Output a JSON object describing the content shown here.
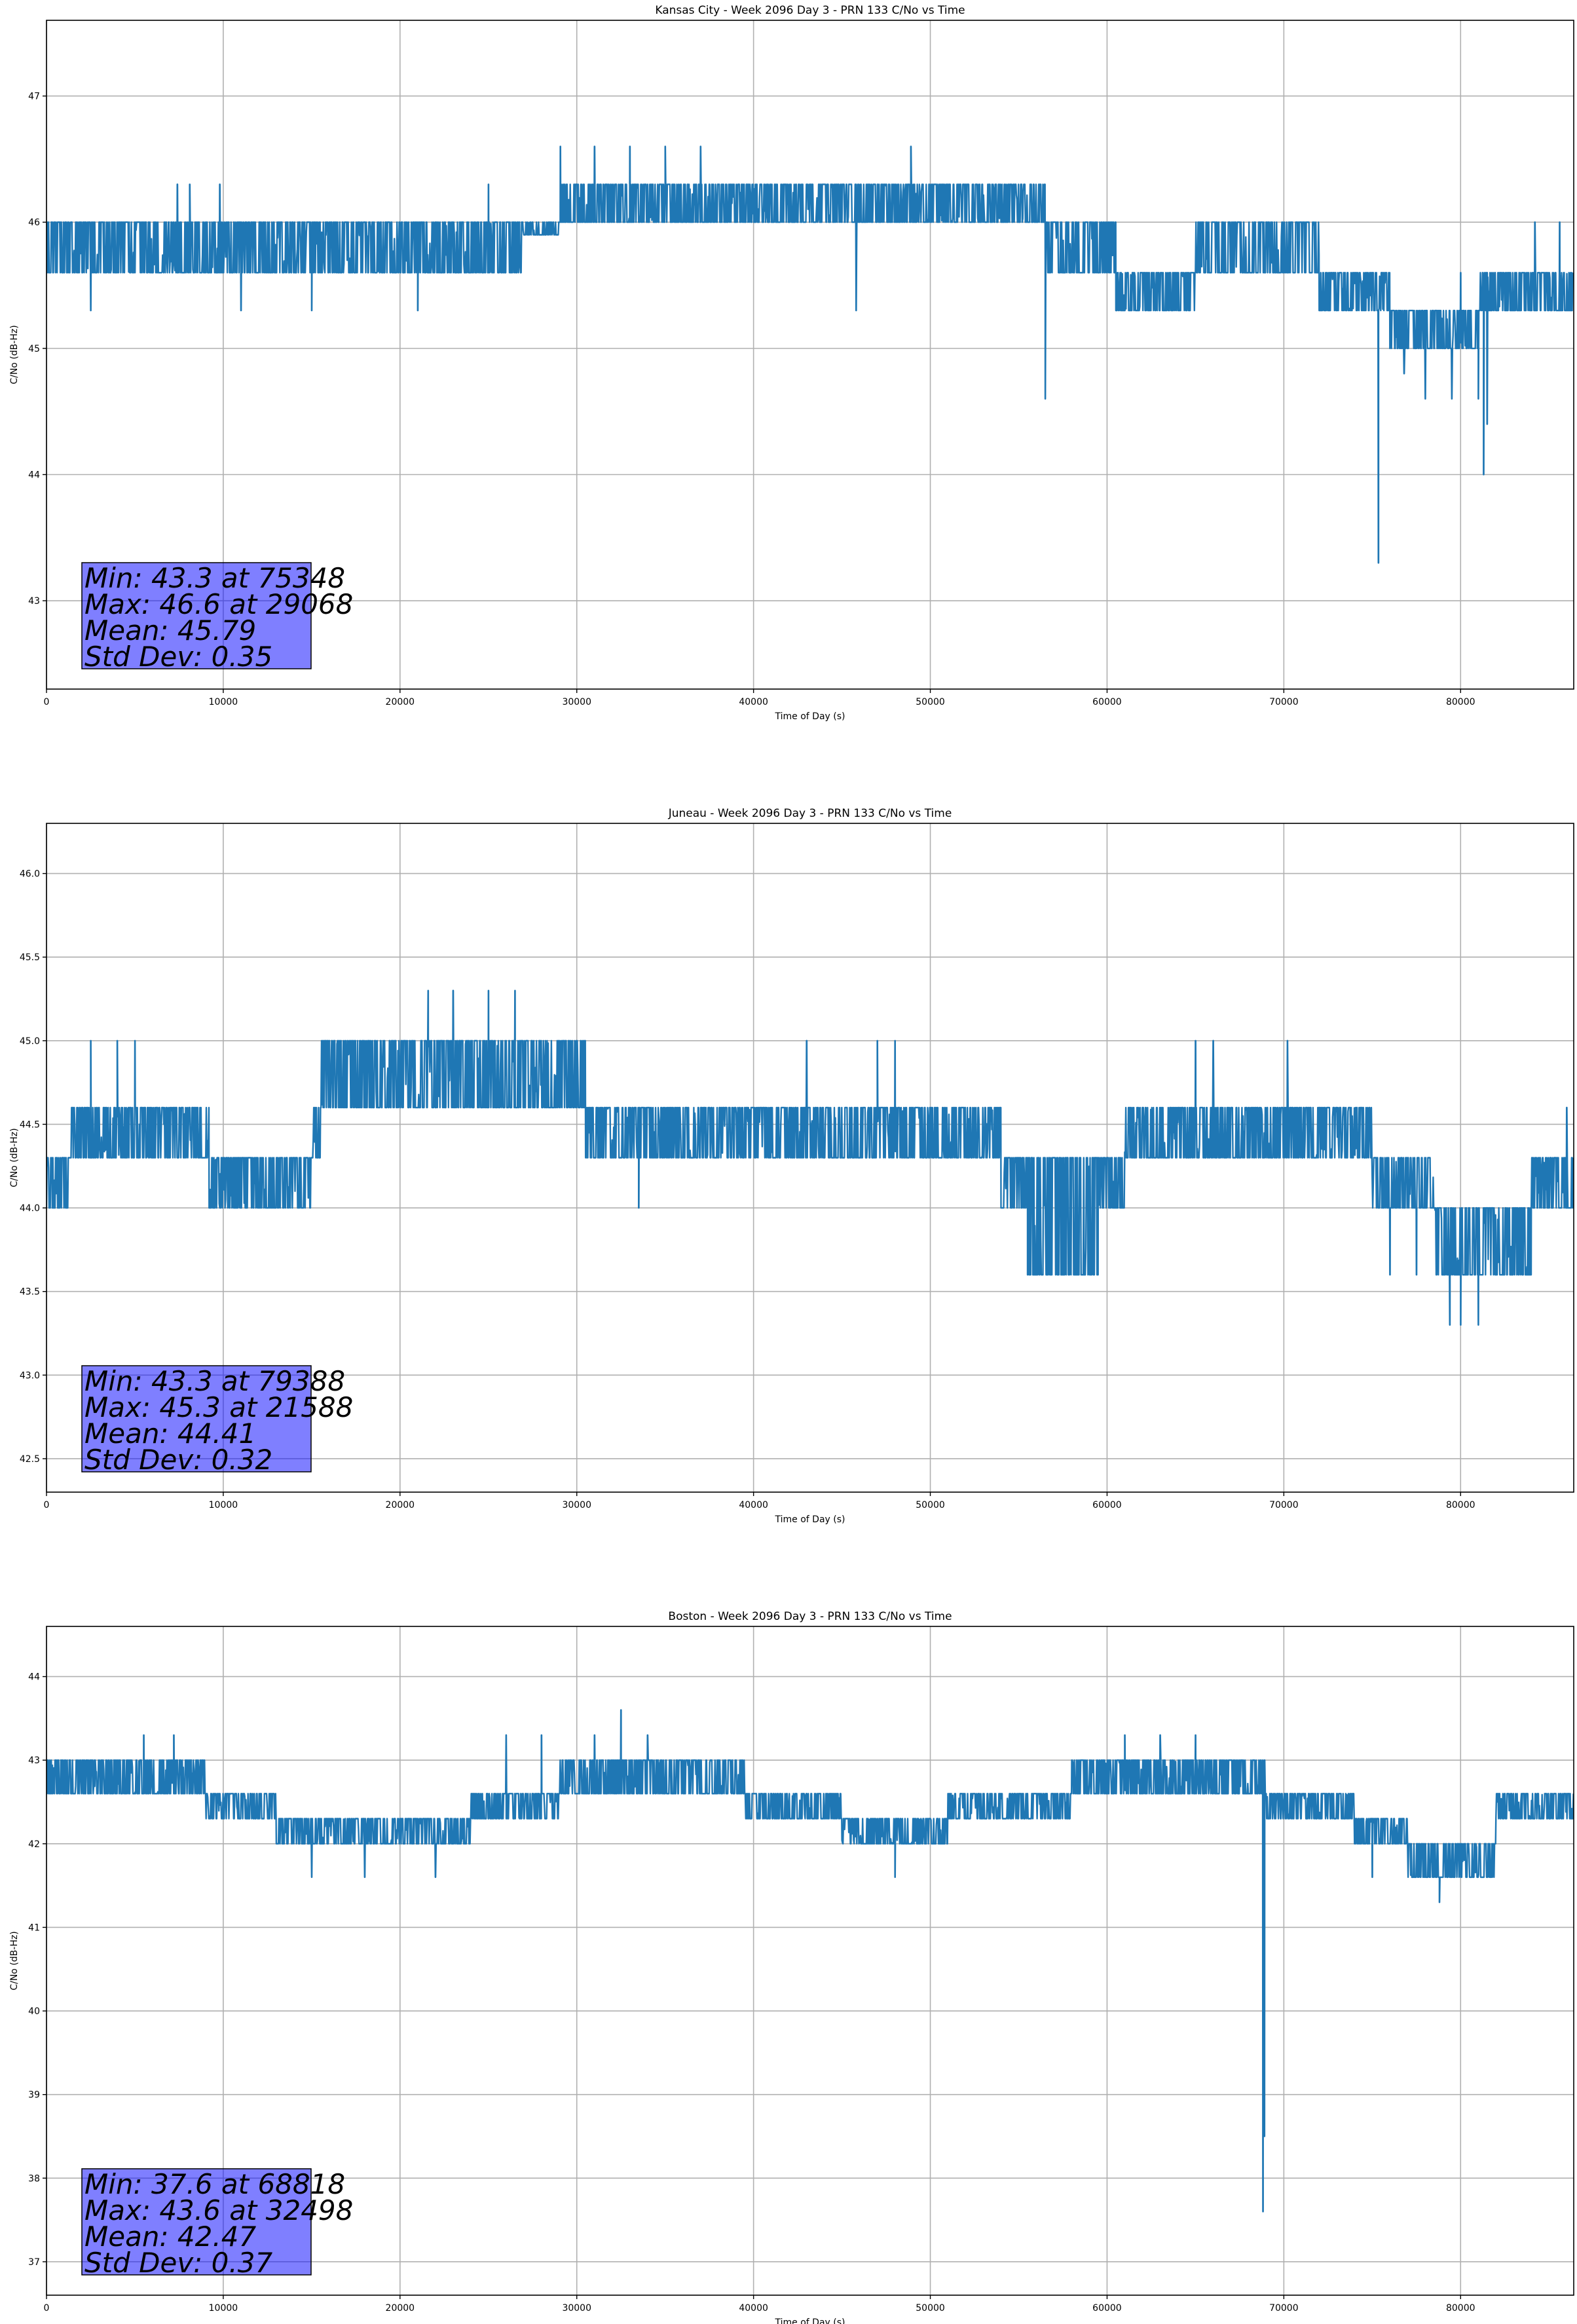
{
  "colors": {
    "series": "#1f77b4",
    "stats_box": "#0000ff",
    "grid": "#b0b0b0"
  },
  "chart_data": [
    {
      "type": "line",
      "title": "Kansas City - Week 2096 Day 3 - PRN 133 C/No vs Time",
      "xlabel": "Time of Day (s)",
      "ylabel": "C/No (dB-Hz)",
      "xlim": [
        0,
        86400
      ],
      "ylim": [
        42.3,
        47.6
      ],
      "xticks": [
        0,
        10000,
        20000,
        30000,
        40000,
        50000,
        60000,
        70000,
        80000
      ],
      "yticks": [
        43,
        44,
        45,
        46,
        47
      ],
      "grid": true,
      "series": [
        {
          "name": "C/No",
          "bands": [
            {
              "x0": 0,
              "x1": 27000,
              "lo": 45.6,
              "hi": 46.0
            },
            {
              "x0": 27000,
              "x1": 29000,
              "lo": 45.9,
              "hi": 46.0
            },
            {
              "x0": 29000,
              "x1": 40500,
              "lo": 46.0,
              "hi": 46.3
            },
            {
              "x0": 40500,
              "x1": 56500,
              "lo": 46.0,
              "hi": 46.3
            },
            {
              "x0": 56500,
              "x1": 60500,
              "lo": 45.6,
              "hi": 46.0
            },
            {
              "x0": 60500,
              "x1": 65000,
              "lo": 45.3,
              "hi": 45.6
            },
            {
              "x0": 65000,
              "x1": 72000,
              "lo": 45.6,
              "hi": 46.0
            },
            {
              "x0": 72000,
              "x1": 76000,
              "lo": 45.3,
              "hi": 45.6
            },
            {
              "x0": 76000,
              "x1": 81000,
              "lo": 45.0,
              "hi": 45.3
            },
            {
              "x0": 81000,
              "x1": 86400,
              "lo": 45.3,
              "hi": 45.6
            }
          ],
          "spikes": [
            {
              "x": 7400,
              "y": 46.3
            },
            {
              "x": 8100,
              "y": 46.3
            },
            {
              "x": 9800,
              "y": 46.3
            },
            {
              "x": 2500,
              "y": 45.3
            },
            {
              "x": 11000,
              "y": 45.3
            },
            {
              "x": 15000,
              "y": 45.3
            },
            {
              "x": 21000,
              "y": 45.3
            },
            {
              "x": 25000,
              "y": 46.3
            },
            {
              "x": 29068,
              "y": 46.6
            },
            {
              "x": 31000,
              "y": 46.6
            },
            {
              "x": 33000,
              "y": 46.6
            },
            {
              "x": 35000,
              "y": 46.6
            },
            {
              "x": 37000,
              "y": 46.6
            },
            {
              "x": 48900,
              "y": 46.6
            },
            {
              "x": 45800,
              "y": 45.3
            },
            {
              "x": 56500,
              "y": 44.6
            },
            {
              "x": 75348,
              "y": 43.3
            },
            {
              "x": 76800,
              "y": 44.8
            },
            {
              "x": 78000,
              "y": 44.6
            },
            {
              "x": 79500,
              "y": 44.6
            },
            {
              "x": 81300,
              "y": 44.0
            },
            {
              "x": 81500,
              "y": 44.4
            },
            {
              "x": 81000,
              "y": 44.6
            },
            {
              "x": 80000,
              "y": 45.6
            },
            {
              "x": 84200,
              "y": 46.0
            },
            {
              "x": 85600,
              "y": 46.0
            }
          ]
        }
      ],
      "stats": {
        "min": "Min: 43.3 at 75348",
        "max": "Max: 46.6 at 29068",
        "mean": "Mean: 45.79",
        "std": "Std Dev: 0.35"
      }
    },
    {
      "type": "line",
      "title": "Juneau - Week 2096 Day 3 - PRN 133 C/No vs Time",
      "xlabel": "Time of Day (s)",
      "ylabel": "C/No (dB-Hz)",
      "xlim": [
        0,
        86400
      ],
      "ylim": [
        42.3,
        46.3
      ],
      "xticks": [
        0,
        10000,
        20000,
        30000,
        40000,
        50000,
        60000,
        70000,
        80000
      ],
      "yticks": [
        42.5,
        43.0,
        43.5,
        44.0,
        44.5,
        45.0,
        45.5,
        46.0
      ],
      "ytick_labels": [
        "42.5",
        "43.0",
        "43.5",
        "44.0",
        "44.5",
        "45.0",
        "45.5",
        "46.0"
      ],
      "grid": true,
      "series": [
        {
          "name": "C/No",
          "bands": [
            {
              "x0": 0,
              "x1": 1300,
              "lo": 44.0,
              "hi": 44.3
            },
            {
              "x0": 1300,
              "x1": 9200,
              "lo": 44.3,
              "hi": 44.6
            },
            {
              "x0": 9200,
              "x1": 15000,
              "lo": 44.0,
              "hi": 44.3
            },
            {
              "x0": 15000,
              "x1": 15500,
              "lo": 44.3,
              "hi": 44.6
            },
            {
              "x0": 15500,
              "x1": 21000,
              "lo": 44.6,
              "hi": 45.0
            },
            {
              "x0": 21000,
              "x1": 27000,
              "lo": 44.6,
              "hi": 45.0
            },
            {
              "x0": 27000,
              "x1": 30500,
              "lo": 44.6,
              "hi": 45.0
            },
            {
              "x0": 30500,
              "x1": 54000,
              "lo": 44.3,
              "hi": 44.6
            },
            {
              "x0": 54000,
              "x1": 55500,
              "lo": 44.0,
              "hi": 44.3
            },
            {
              "x0": 55500,
              "x1": 59500,
              "lo": 43.6,
              "hi": 44.3
            },
            {
              "x0": 59500,
              "x1": 61000,
              "lo": 44.0,
              "hi": 44.3
            },
            {
              "x0": 61000,
              "x1": 75000,
              "lo": 44.3,
              "hi": 44.6
            },
            {
              "x0": 75000,
              "x1": 78500,
              "lo": 44.0,
              "hi": 44.3
            },
            {
              "x0": 78500,
              "x1": 84000,
              "lo": 43.6,
              "hi": 44.0
            },
            {
              "x0": 84000,
              "x1": 86400,
              "lo": 44.0,
              "hi": 44.3
            }
          ],
          "spikes": [
            {
              "x": 2500,
              "y": 45.0
            },
            {
              "x": 4000,
              "y": 45.0
            },
            {
              "x": 5000,
              "y": 45.0
            },
            {
              "x": 21588,
              "y": 45.3
            },
            {
              "x": 23000,
              "y": 45.3
            },
            {
              "x": 25000,
              "y": 45.3
            },
            {
              "x": 26500,
              "y": 45.3
            },
            {
              "x": 33500,
              "y": 44.0
            },
            {
              "x": 43000,
              "y": 45.0
            },
            {
              "x": 47000,
              "y": 45.0
            },
            {
              "x": 48000,
              "y": 45.0
            },
            {
              "x": 55500,
              "y": 43.6
            },
            {
              "x": 57500,
              "y": 43.6
            },
            {
              "x": 65000,
              "y": 45.0
            },
            {
              "x": 66000,
              "y": 45.0
            },
            {
              "x": 70200,
              "y": 45.0
            },
            {
              "x": 76000,
              "y": 43.6
            },
            {
              "x": 77500,
              "y": 43.6
            },
            {
              "x": 79388,
              "y": 43.3
            },
            {
              "x": 80000,
              "y": 43.3
            },
            {
              "x": 81000,
              "y": 43.3
            },
            {
              "x": 86000,
              "y": 44.6
            }
          ]
        }
      ],
      "stats": {
        "min": "Min: 43.3 at 79388",
        "max": "Max: 45.3 at 21588",
        "mean": "Mean: 44.41",
        "std": "Std Dev: 0.32"
      }
    },
    {
      "type": "line",
      "title": "Boston - Week 2096 Day 3 - PRN 133 C/No vs Time",
      "xlabel": "Time of Day (s)",
      "ylabel": "C/No (dB-Hz)",
      "xlim": [
        0,
        86400
      ],
      "ylim": [
        36.6,
        44.6
      ],
      "xticks": [
        0,
        10000,
        20000,
        30000,
        40000,
        50000,
        60000,
        70000,
        80000
      ],
      "yticks": [
        37,
        38,
        39,
        40,
        41,
        42,
        43,
        44
      ],
      "grid": true,
      "series": [
        {
          "name": "C/No",
          "bands": [
            {
              "x0": 0,
              "x1": 9000,
              "lo": 42.6,
              "hi": 43.0
            },
            {
              "x0": 9000,
              "x1": 13000,
              "lo": 42.3,
              "hi": 42.6
            },
            {
              "x0": 13000,
              "x1": 20000,
              "lo": 42.0,
              "hi": 42.3
            },
            {
              "x0": 20000,
              "x1": 24000,
              "lo": 42.0,
              "hi": 42.3
            },
            {
              "x0": 24000,
              "x1": 29000,
              "lo": 42.3,
              "hi": 42.6
            },
            {
              "x0": 29000,
              "x1": 39500,
              "lo": 42.6,
              "hi": 43.0
            },
            {
              "x0": 39500,
              "x1": 45000,
              "lo": 42.3,
              "hi": 42.6
            },
            {
              "x0": 45000,
              "x1": 51000,
              "lo": 42.0,
              "hi": 42.3
            },
            {
              "x0": 51000,
              "x1": 58000,
              "lo": 42.3,
              "hi": 42.6
            },
            {
              "x0": 58000,
              "x1": 69000,
              "lo": 42.6,
              "hi": 43.0
            },
            {
              "x0": 69000,
              "x1": 74000,
              "lo": 42.3,
              "hi": 42.6
            },
            {
              "x0": 74000,
              "x1": 77000,
              "lo": 42.0,
              "hi": 42.3
            },
            {
              "x0": 77000,
              "x1": 82000,
              "lo": 41.6,
              "hi": 42.0
            },
            {
              "x0": 82000,
              "x1": 86400,
              "lo": 42.3,
              "hi": 42.6
            }
          ],
          "spikes": [
            {
              "x": 5500,
              "y": 43.3
            },
            {
              "x": 7200,
              "y": 43.3
            },
            {
              "x": 15000,
              "y": 41.6
            },
            {
              "x": 18000,
              "y": 41.6
            },
            {
              "x": 22000,
              "y": 41.6
            },
            {
              "x": 26000,
              "y": 43.3
            },
            {
              "x": 28000,
              "y": 43.3
            },
            {
              "x": 31000,
              "y": 43.3
            },
            {
              "x": 32498,
              "y": 43.6
            },
            {
              "x": 34000,
              "y": 43.3
            },
            {
              "x": 48000,
              "y": 41.6
            },
            {
              "x": 61000,
              "y": 43.3
            },
            {
              "x": 63000,
              "y": 43.3
            },
            {
              "x": 65000,
              "y": 43.3
            },
            {
              "x": 68818,
              "y": 37.6
            },
            {
              "x": 68900,
              "y": 38.5
            },
            {
              "x": 75000,
              "y": 41.6
            },
            {
              "x": 78800,
              "y": 41.3
            },
            {
              "x": 80000,
              "y": 41.6
            }
          ]
        }
      ],
      "stats": {
        "min": "Min: 37.6 at 68818",
        "max": "Max: 43.6 at 32498",
        "mean": "Mean: 42.47",
        "std": "Std Dev: 0.37"
      }
    }
  ]
}
